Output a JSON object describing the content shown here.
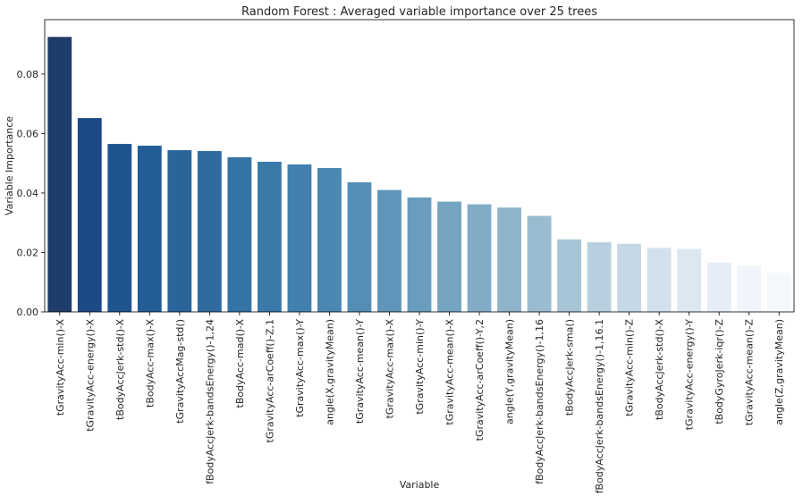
{
  "chart_data": {
    "type": "bar",
    "title": "Random Forest : Averaged variable importance over 25 trees",
    "xlabel": "Variable",
    "ylabel": "Variable Importance",
    "ylim": [
      0,
      0.0983
    ],
    "yticks": [
      "0.00",
      "0.02",
      "0.04",
      "0.06",
      "0.08"
    ],
    "ytick_values": [
      0,
      0.02,
      0.04,
      0.06,
      0.08
    ],
    "grid": false,
    "palette": "Blues (dark to light)",
    "categories": [
      "tGravityAcc-min()-X",
      "tGravityAcc-energy()-X",
      "tBodyAccJerk-std()-X",
      "tBodyAcc-max()-X",
      "tGravityAccMag-std()",
      "fBodyAccJerk-bandsEnergy()-1,24",
      "tBodyAcc-mad()-X",
      "tGravityAcc-arCoeff()-Z,1",
      "tGravityAcc-max()-Y",
      "angle(X,gravityMean)",
      "tGravityAcc-mean()-Y",
      "tGravityAcc-max()-X",
      "tGravityAcc-min()-Y",
      "tGravityAcc-mean()-X",
      "tGravityAcc-arCoeff()-Y,2",
      "angle(Y,gravityMean)",
      "fBodyAccJerk-bandsEnergy()-1,16",
      "tBodyAccJerk-sma()",
      "fBodyAccJerk-bandsEnergy()-1,16.1",
      "tGravityAcc-min()-Z",
      "tBodyAccJerk-std()-X",
      "tGravityAcc-energy()-Y",
      "tBodyGyroJerk-iqr()-Z",
      "tGravityAcc-mean()-Z",
      "angle(Z,gravityMean)"
    ],
    "values": [
      0.0925,
      0.0652,
      0.0565,
      0.0559,
      0.0544,
      0.0541,
      0.052,
      0.0505,
      0.0496,
      0.0484,
      0.0436,
      0.041,
      0.0385,
      0.0371,
      0.0362,
      0.0351,
      0.0323,
      0.0244,
      0.0234,
      0.0229,
      0.0215,
      0.0212,
      0.0166,
      0.0155,
      0.0132
    ],
    "colors": [
      "#1f3d6b",
      "#1d4986",
      "#1f5490",
      "#235d98",
      "#2a649b",
      "#2f6ba0",
      "#3473a5",
      "#3a7aab",
      "#4280af",
      "#4a87b2",
      "#548eb5",
      "#5e95b9",
      "#6a9dbd",
      "#75a4c1",
      "#82acc6",
      "#8eb4ca",
      "#9abcd0",
      "#a8c4d7",
      "#b7cfdf",
      "#c5d8e6",
      "#d3e1ec",
      "#dce8f1",
      "#e5eef6",
      "#eff5fa",
      "#f5f9fc"
    ]
  }
}
